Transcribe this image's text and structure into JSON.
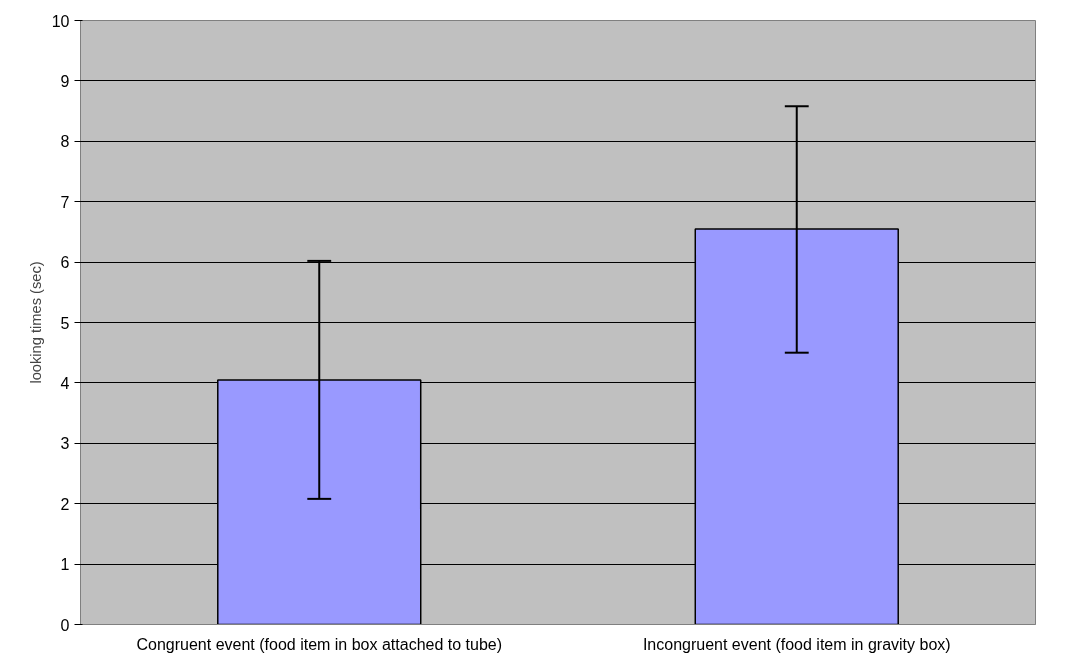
{
  "chart_data": {
    "type": "bar",
    "ylabel": "looking times (sec)",
    "categories": [
      "Congruent event (food item in box attached to tube)",
      "Incongruent event (food item in gravity box)"
    ],
    "values": [
      4.05,
      6.55
    ],
    "color": "#9999ff",
    "errors": [
      [
        2.08,
        6.02
      ],
      [
        4.5,
        8.58
      ]
    ],
    "ylim": [
      0,
      10
    ],
    "yticks": [
      0,
      1,
      2,
      3,
      4,
      5,
      6,
      7,
      8,
      9,
      10
    ],
    "grid": "y"
  }
}
